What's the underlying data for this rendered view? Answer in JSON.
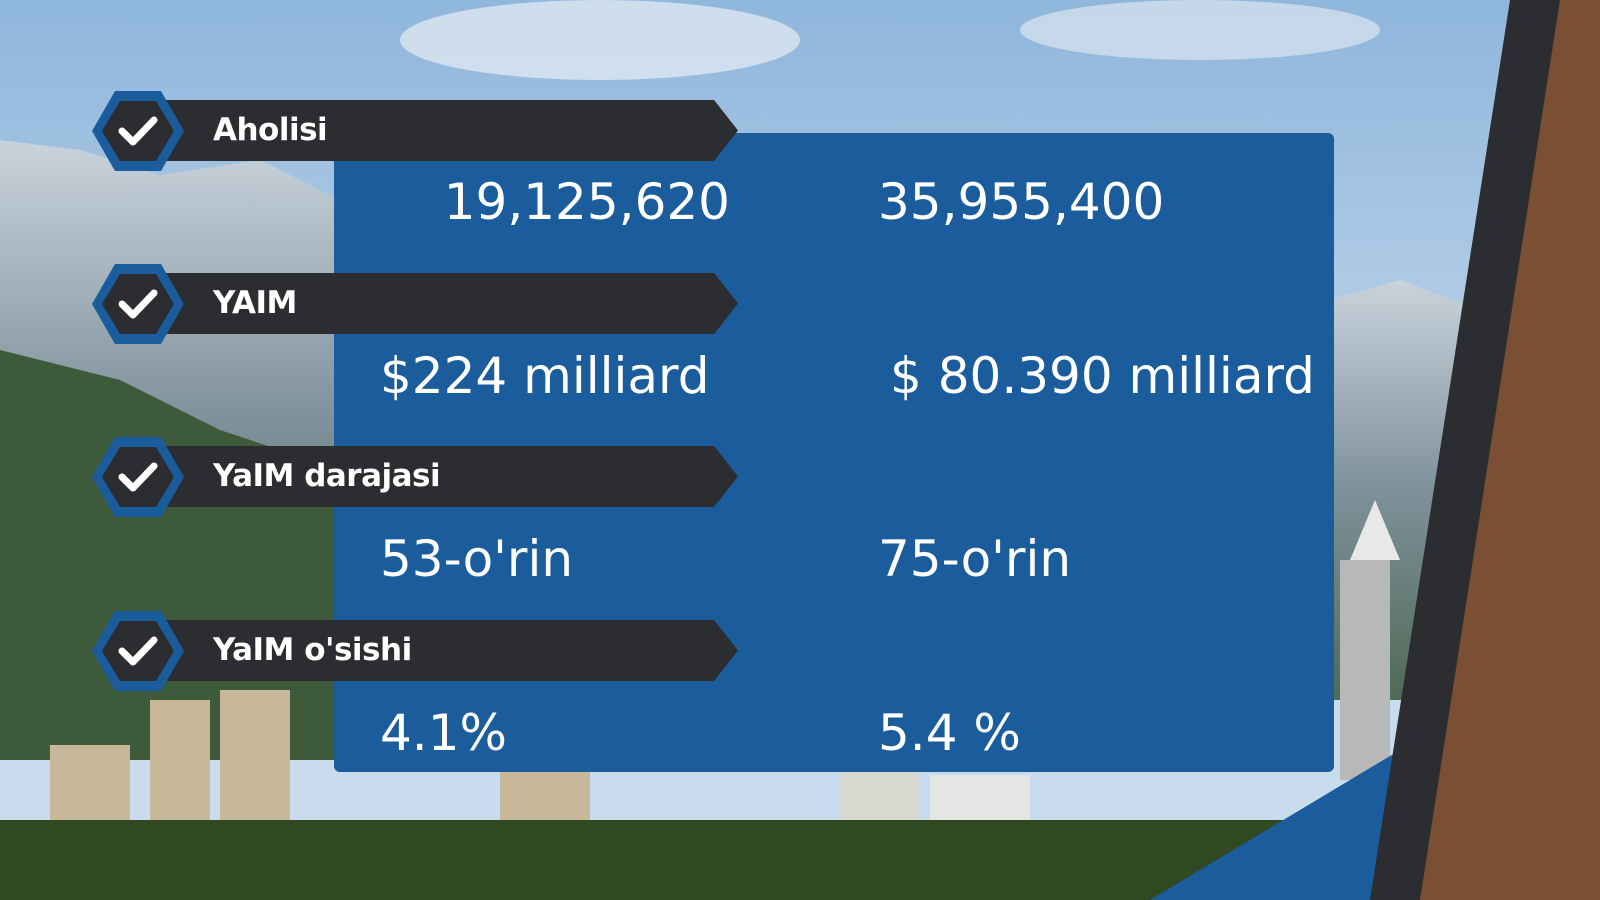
{
  "rows": [
    {
      "label": "Aholisi",
      "values": [
        "19,125,620",
        "35,955,400"
      ]
    },
    {
      "label": "YAIM",
      "values": [
        "$224 milliard",
        "$ 80.390 milliard"
      ]
    },
    {
      "label": "YaIM darajasi",
      "values": [
        "53-o'rin",
        "75-o'rin"
      ]
    },
    {
      "label": "YaIM o'sishi",
      "values": [
        "4.1%",
        "5.4 %"
      ]
    }
  ]
}
